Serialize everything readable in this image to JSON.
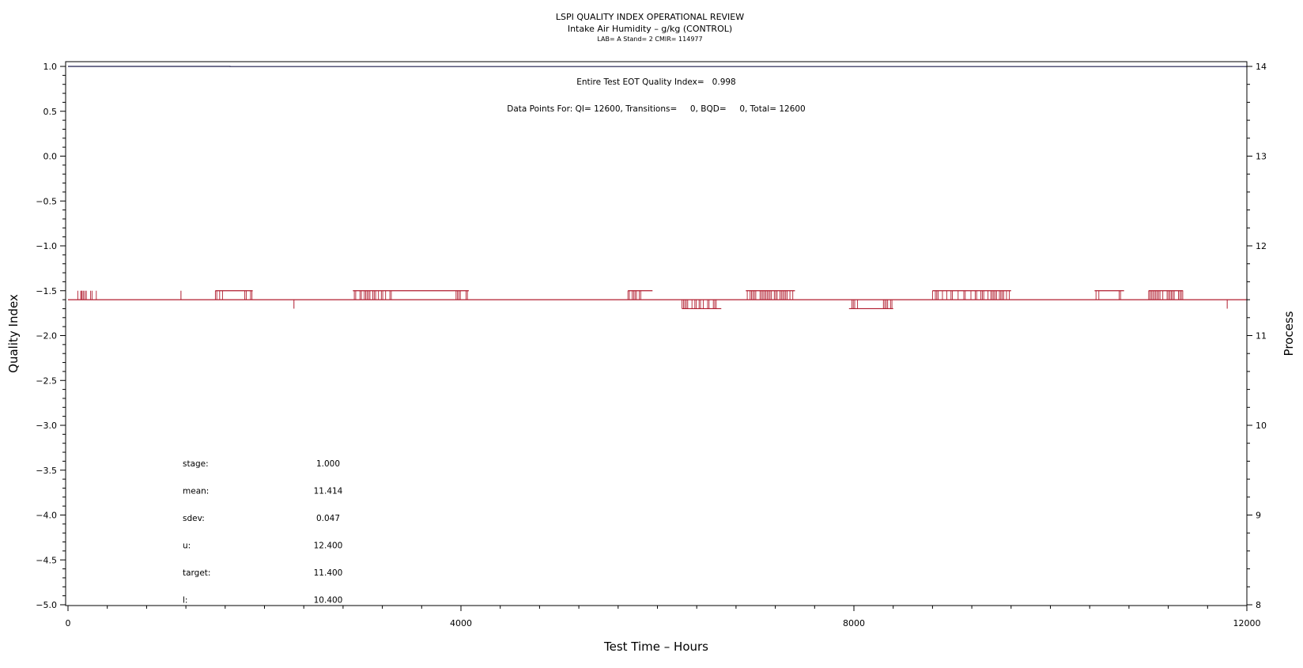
{
  "chart_data": {
    "type": "line",
    "title": "LSPI QUALITY INDEX OPERATIONAL REVIEW",
    "subtitle": "Intake Air Humidity – g/kg (CONTROL)",
    "subtitle2": "LAB= A Stand= 2 CMIR= 114977",
    "xlabel": "Test Time – Hours",
    "ylabel": "Quality Index",
    "y2label": "Process",
    "xlim": [
      0,
      12000
    ],
    "ylim": [
      -5.0,
      1.0
    ],
    "y2lim": [
      8,
      14
    ],
    "xticks": [
      "0",
      "4000",
      "8000",
      "12000"
    ],
    "yticks": [
      "1.0",
      "0.5",
      "0.0",
      "−0.5",
      "−1.0",
      "−1.5",
      "−2.0",
      "−2.5",
      "−3.0",
      "−3.5",
      "−4.0",
      "−4.5",
      "−5.0"
    ],
    "y2ticks": [
      "14",
      "13",
      "12",
      "11",
      "10",
      "9",
      "8"
    ],
    "annotations": {
      "eot": "Entire Test EOT Quality Index=   0.998",
      "points": "Data Points For: QI= 12600, Transitions=     0, BQD=     0, Total= 12600"
    },
    "stats": [
      {
        "label": "stage:",
        "value": "1.000"
      },
      {
        "label": "mean:",
        "value": "11.414"
      },
      {
        "label": "sdev:",
        "value": "0.047"
      },
      {
        "label": "u:",
        "value": "12.400"
      },
      {
        "label": "target:",
        "value": "11.400"
      },
      {
        "label": "l:",
        "value": "10.400"
      }
    ],
    "series": [
      {
        "axis": "left",
        "color": "#1a1a4a",
        "x": [
          0,
          1650,
          1650,
          12000
        ],
        "y": [
          1.0,
          1.0,
          0.998,
          0.998
        ]
      },
      {
        "axis": "right",
        "color": "#b01c2e",
        "baseline": 11.4,
        "segments": [
          {
            "x0": 0,
            "x1": 12000,
            "y": 11.4
          },
          {
            "x0": 1500,
            "x1": 1880,
            "y": 11.5
          },
          {
            "x0": 2900,
            "x1": 4080,
            "y": 11.5
          },
          {
            "x0": 5700,
            "x1": 5950,
            "y": 11.5
          },
          {
            "x0": 6250,
            "x1": 6650,
            "y": 11.3
          },
          {
            "x0": 6900,
            "x1": 7400,
            "y": 11.5
          },
          {
            "x0": 7950,
            "x1": 8400,
            "y": 11.3
          },
          {
            "x0": 8800,
            "x1": 9600,
            "y": 11.5
          },
          {
            "x0": 10450,
            "x1": 10750,
            "y": 11.5
          },
          {
            "x0": 11000,
            "x1": 11350,
            "y": 11.5
          }
        ],
        "noise": [
          {
            "x0": 100,
            "x1": 300,
            "y": 11.5
          },
          {
            "x0": 1500,
            "x1": 1580,
            "y": 11.5
          },
          {
            "x0": 1800,
            "x1": 1880,
            "y": 11.5
          },
          {
            "x0": 2900,
            "x1": 3300,
            "y": 11.5
          },
          {
            "x0": 3950,
            "x1": 4080,
            "y": 11.5
          },
          {
            "x0": 5700,
            "x1": 5950,
            "y": 11.5
          },
          {
            "x0": 6250,
            "x1": 6650,
            "y": 11.3
          },
          {
            "x0": 6900,
            "x1": 7400,
            "y": 11.5
          },
          {
            "x0": 7950,
            "x1": 8050,
            "y": 11.3
          },
          {
            "x0": 8300,
            "x1": 8400,
            "y": 11.3
          },
          {
            "x0": 8800,
            "x1": 9600,
            "y": 11.5
          },
          {
            "x0": 10450,
            "x1": 10500,
            "y": 11.5
          },
          {
            "x0": 10700,
            "x1": 10750,
            "y": 11.5
          },
          {
            "x0": 11000,
            "x1": 11350,
            "y": 11.5
          }
        ],
        "spikes": [
          {
            "x": 140,
            "y": 11.5
          },
          {
            "x": 1150,
            "y": 11.5
          },
          {
            "x": 2300,
            "y": 11.3
          },
          {
            "x": 11800,
            "y": 11.3
          }
        ]
      }
    ]
  }
}
